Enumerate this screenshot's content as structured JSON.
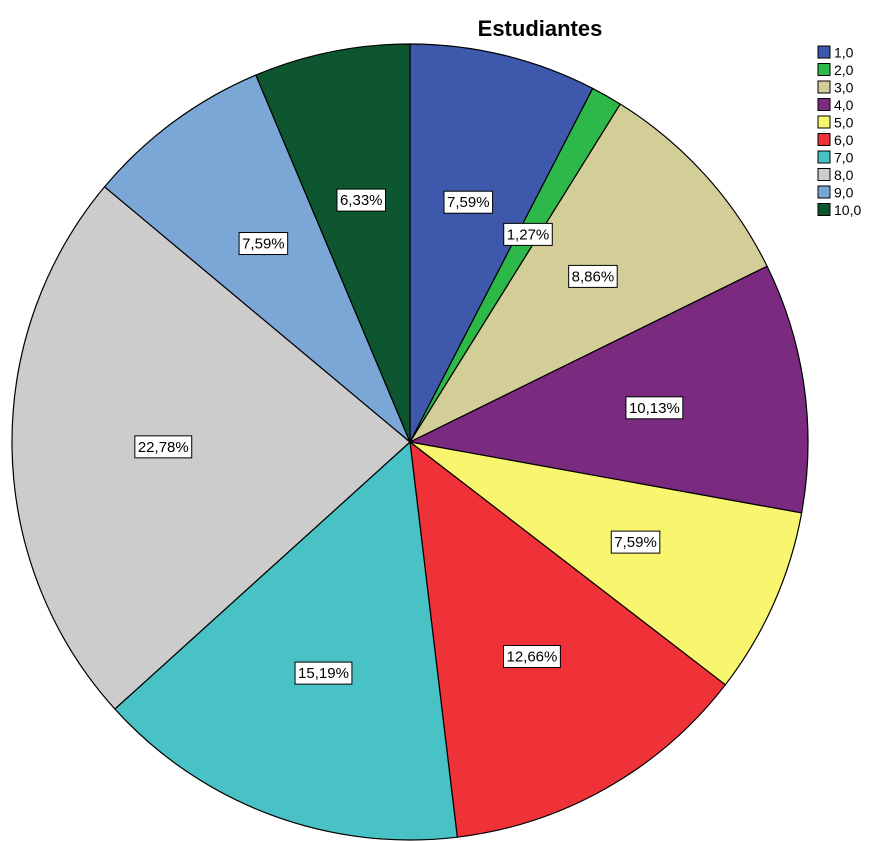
{
  "chart_data": {
    "type": "pie",
    "title": "Estudiantes",
    "legend_position": "top-right",
    "start_angle_deg": 0,
    "direction": "clockwise",
    "slices": [
      {
        "label": "1,0",
        "value": 7.59,
        "data_label": "7,59%",
        "color": "#3e58ac"
      },
      {
        "label": "2,0",
        "value": 1.27,
        "data_label": "1,27%",
        "color": "#2db84a"
      },
      {
        "label": "3,0",
        "value": 8.86,
        "data_label": "8,86%",
        "color": "#d3ce98"
      },
      {
        "label": "4,0",
        "value": 10.13,
        "data_label": "10,13%",
        "color": "#7a2a7f"
      },
      {
        "label": "5,0",
        "value": 7.59,
        "data_label": "7,59%",
        "color": "#f8f66e"
      },
      {
        "label": "6,0",
        "value": 12.66,
        "data_label": "12,66%",
        "color": "#ef3237"
      },
      {
        "label": "7,0",
        "value": 15.19,
        "data_label": "15,19%",
        "color": "#48c2c4"
      },
      {
        "label": "8,0",
        "value": 22.78,
        "data_label": "22,78%",
        "color": "#cccccc"
      },
      {
        "label": "9,0",
        "value": 7.59,
        "data_label": "7,59%",
        "color": "#7ba7d6"
      },
      {
        "label": "10,0",
        "value": 6.33,
        "data_label": "6,33%",
        "color": "#0d5630"
      }
    ]
  }
}
